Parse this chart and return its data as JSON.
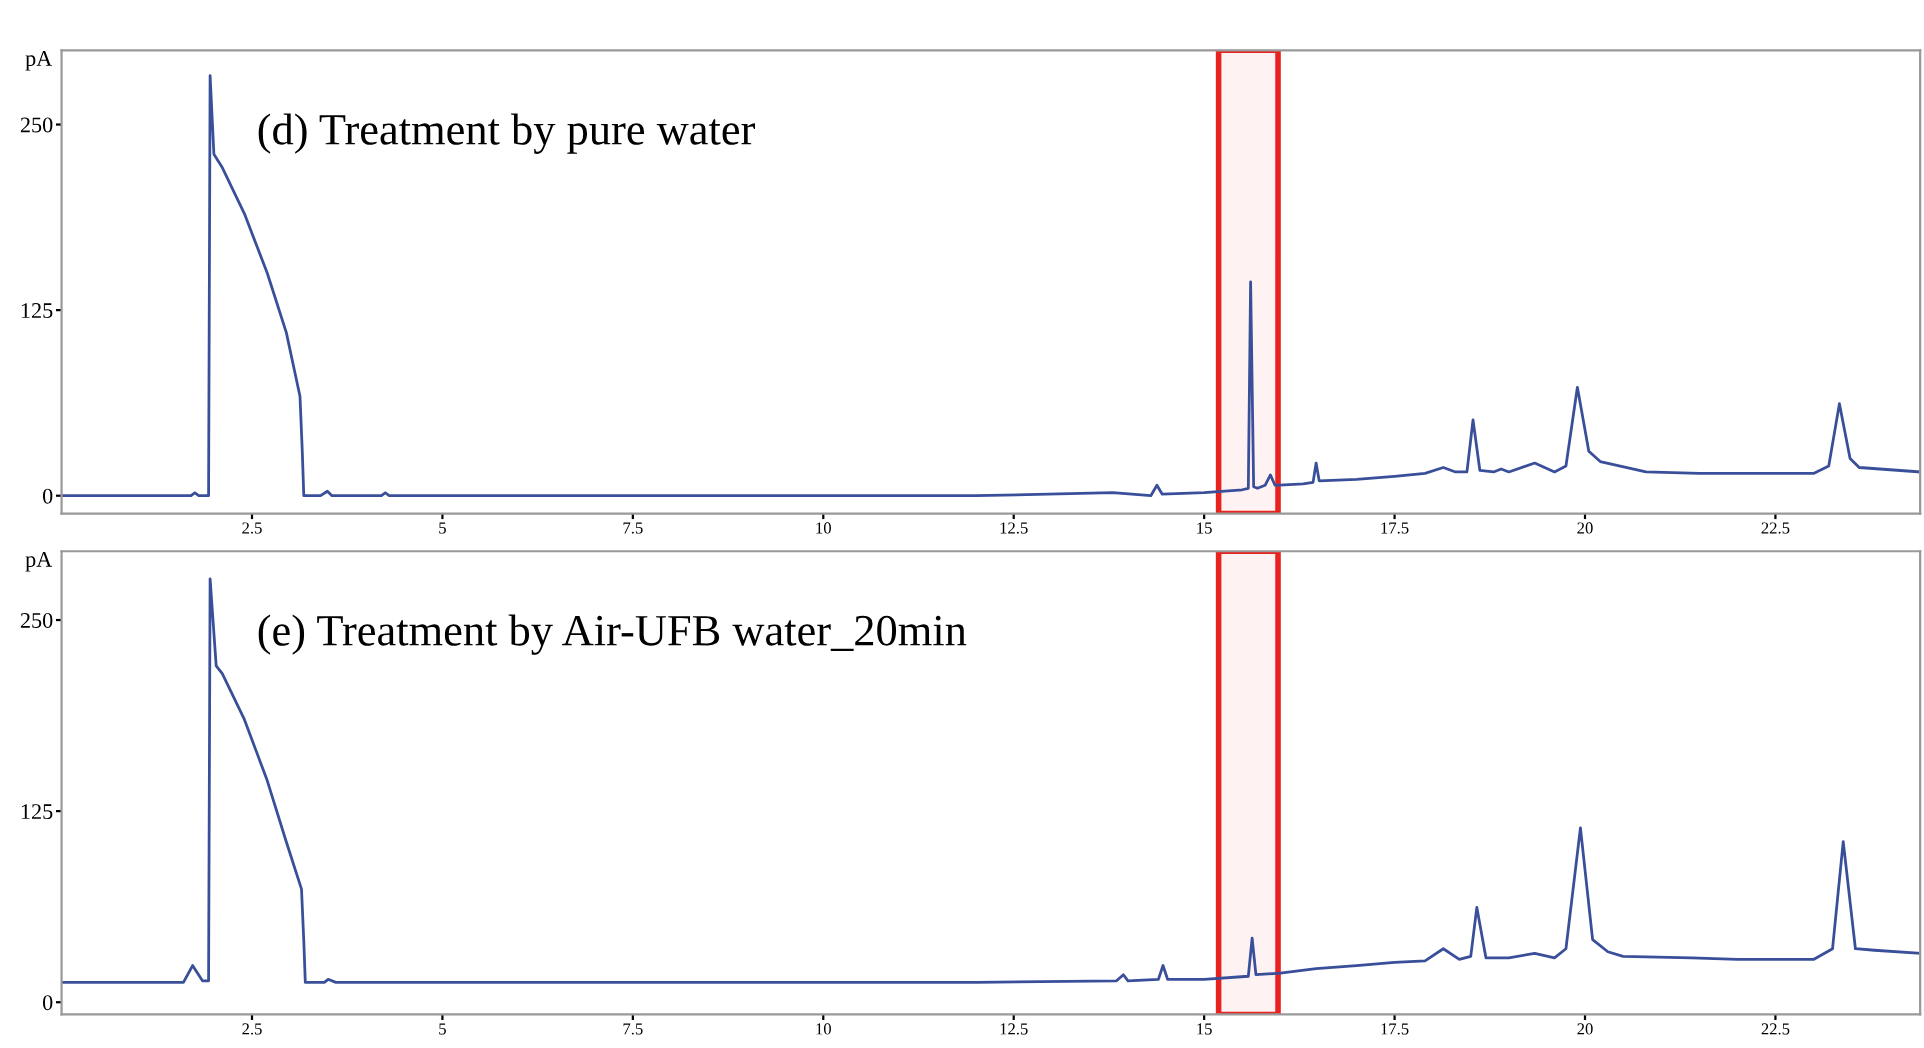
{
  "chart_data": [
    {
      "type": "line",
      "ylabel": "pA",
      "annotations": [
        "(d) Treatment by pure water"
      ],
      "xlim": [
        0,
        24.4
      ],
      "xticks": [
        2.5,
        5,
        7.5,
        10,
        12.5,
        15,
        17.5,
        20,
        22.5
      ],
      "ylim": [
        -12,
        300
      ],
      "yticks": [
        0,
        125,
        250
      ],
      "grid": false,
      "marker": "none",
      "line_style": "solid",
      "bands": [
        {
          "axis": "x",
          "from": 15.19,
          "to": 15.97,
          "color": "#e8231f"
        }
      ],
      "series": [
        {
          "color": "#3a4f9a",
          "x": [
            0,
            1.7,
            1.75,
            1.8,
            1.93,
            1.95,
            2.0,
            2.11,
            2.4,
            2.7,
            2.95,
            3.13,
            3.16,
            3.18,
            3.4,
            3.49,
            3.55,
            4.2,
            4.25,
            4.3,
            6,
            8,
            10,
            12,
            13.8,
            14.3,
            14.38,
            14.45,
            15.0,
            15.5,
            15.58,
            15.61,
            15.65,
            15.7,
            15.8,
            15.87,
            15.93,
            16.3,
            16.43,
            16.47,
            16.51,
            17.0,
            17.5,
            17.9,
            18.14,
            18.3,
            18.45,
            18.53,
            18.62,
            18.8,
            18.9,
            19.0,
            19.34,
            19.6,
            19.75,
            19.9,
            20.05,
            20.2,
            20.8,
            21.5,
            22.5,
            23.0,
            23.2,
            23.34,
            23.48,
            23.6,
            24.4
          ],
          "values": [
            0,
            0,
            2,
            0,
            0,
            283,
            230,
            221,
            190,
            150,
            110,
            67,
            30,
            0,
            0,
            3,
            0,
            0,
            2,
            0,
            0,
            0,
            0,
            0,
            2,
            0,
            7,
            1,
            2,
            4,
            5,
            144,
            6,
            5,
            7,
            14,
            7,
            8,
            9,
            22,
            10,
            11,
            13,
            15,
            19,
            16,
            16,
            51,
            17,
            16,
            18,
            16,
            22,
            16,
            20,
            73,
            30,
            23,
            16,
            15,
            15,
            15,
            20,
            62,
            25,
            19,
            16
          ]
        }
      ]
    },
    {
      "type": "line",
      "ylabel": "pA",
      "annotations": [
        "(e) Treatment by Air-UFB water_20min"
      ],
      "xlim": [
        0,
        24.4
      ],
      "xticks": [
        2.5,
        5,
        7.5,
        10,
        12.5,
        15,
        17.5,
        20,
        22.5
      ],
      "ylim": [
        -8,
        295
      ],
      "yticks": [
        0,
        125,
        250
      ],
      "grid": false,
      "marker": "none",
      "line_style": "solid",
      "bands": [
        {
          "axis": "x",
          "from": 15.19,
          "to": 15.97,
          "color": "#e8231f"
        }
      ],
      "series": [
        {
          "color": "#3a4f9a",
          "x": [
            0,
            1.6,
            1.72,
            1.85,
            1.93,
            1.95,
            2.03,
            2.11,
            2.4,
            2.7,
            2.95,
            3.15,
            3.18,
            3.2,
            3.45,
            3.5,
            3.6,
            6,
            8,
            10,
            12,
            13.85,
            13.94,
            14.0,
            14.4,
            14.46,
            14.52,
            15.0,
            15.58,
            15.63,
            15.68,
            16.0,
            16.47,
            17.0,
            17.5,
            17.9,
            18.14,
            18.35,
            18.5,
            18.58,
            18.7,
            19.0,
            19.34,
            19.6,
            19.75,
            19.94,
            20.1,
            20.3,
            20.5,
            21.4,
            22.0,
            23.0,
            23.25,
            23.39,
            23.55,
            23.8,
            24.4
          ],
          "values": [
            13,
            13,
            24,
            14,
            14,
            277,
            220,
            215,
            185,
            145,
            105,
            74,
            40,
            13,
            13,
            15,
            13,
            13,
            13,
            13,
            13,
            14,
            18,
            14,
            15,
            24,
            15,
            15,
            17,
            42,
            18,
            19,
            22,
            24,
            26,
            27,
            35,
            28,
            30,
            62,
            29,
            29,
            32,
            29,
            35,
            114,
            41,
            33,
            30,
            29,
            28,
            28,
            35,
            105,
            35,
            34,
            32
          ]
        }
      ]
    }
  ]
}
